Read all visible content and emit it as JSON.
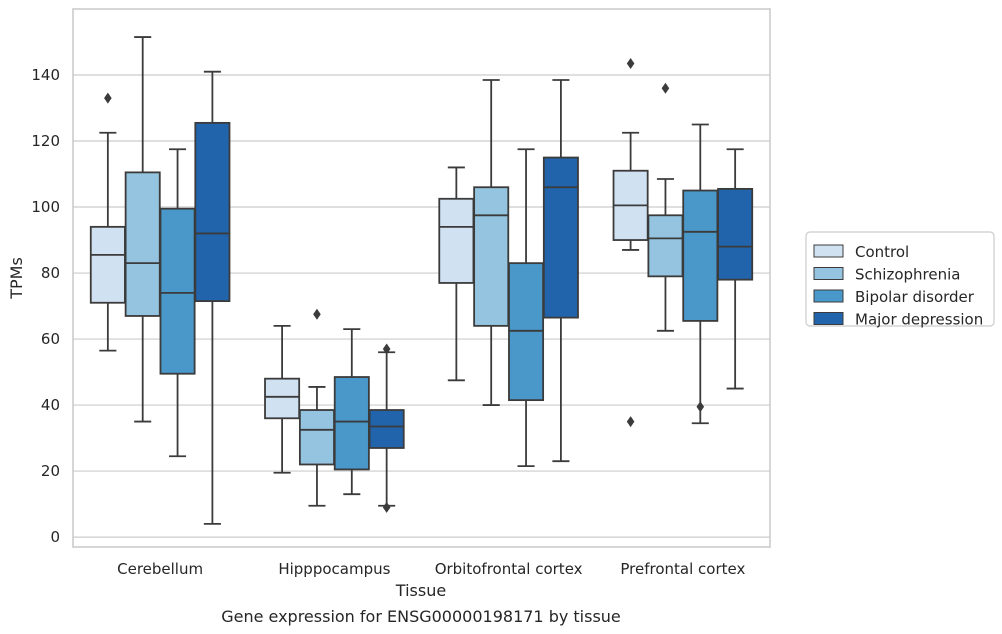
{
  "chart_data": {
    "type": "box",
    "title": "",
    "caption": "Gene expression for ENSG00000198171 by tissue",
    "xlabel": "Tissue",
    "ylabel": "TPMs",
    "ylim": [
      -3,
      160
    ],
    "yticks": [
      0,
      20,
      40,
      60,
      80,
      100,
      120,
      140
    ],
    "grid": true,
    "legend_position": "right",
    "categories": [
      "Cerebellum",
      "Hipppocampus",
      "Orbitofrontal cortex",
      "Prefrontal cortex"
    ],
    "series": [
      {
        "name": "Control",
        "color": "#d0e1f2",
        "boxes": [
          {
            "whislo": 56.5,
            "q1": 71,
            "med": 85.5,
            "q3": 94,
            "whishi": 122.5,
            "fliers": [
              133
            ]
          },
          {
            "whislo": 19.5,
            "q1": 36,
            "med": 42.5,
            "q3": 48,
            "whishi": 64,
            "fliers": []
          },
          {
            "whislo": 47.5,
            "q1": 77,
            "med": 94,
            "q3": 102.5,
            "whishi": 112,
            "fliers": []
          },
          {
            "whislo": 87,
            "q1": 90,
            "med": 100.5,
            "q3": 111,
            "whishi": 122.5,
            "fliers": [
              143.5,
              35
            ]
          }
        ]
      },
      {
        "name": "Schizophrenia",
        "color": "#94c4df",
        "boxes": [
          {
            "whislo": 35,
            "q1": 67,
            "med": 83,
            "q3": 110.5,
            "whishi": 151.5,
            "fliers": []
          },
          {
            "whislo": 9.5,
            "q1": 22,
            "med": 32.5,
            "q3": 38.5,
            "whishi": 45.5,
            "fliers": [
              67.5
            ]
          },
          {
            "whislo": 40,
            "q1": 64,
            "med": 97.5,
            "q3": 106,
            "whishi": 138.5,
            "fliers": []
          },
          {
            "whislo": 62.5,
            "q1": 79,
            "med": 90.5,
            "q3": 97.5,
            "whishi": 108.5,
            "fliers": [
              136
            ]
          }
        ]
      },
      {
        "name": "Bipolar disorder",
        "color": "#4a98c9",
        "boxes": [
          {
            "whislo": 24.5,
            "q1": 49.5,
            "med": 74,
            "q3": 99.5,
            "whishi": 117.5,
            "fliers": []
          },
          {
            "whislo": 13,
            "q1": 20.5,
            "med": 35,
            "q3": 48.5,
            "whishi": 63,
            "fliers": []
          },
          {
            "whislo": 21.5,
            "q1": 41.5,
            "med": 62.5,
            "q3": 83,
            "whishi": 117.5,
            "fliers": []
          },
          {
            "whislo": 34.5,
            "q1": 65.5,
            "med": 92.5,
            "q3": 105,
            "whishi": 125,
            "fliers": [
              39.5
            ]
          }
        ]
      },
      {
        "name": "Major depression",
        "color": "#2264ab",
        "boxes": [
          {
            "whislo": 4,
            "q1": 71.5,
            "med": 92,
            "q3": 125.5,
            "whishi": 141,
            "fliers": []
          },
          {
            "whislo": 9.5,
            "q1": 27,
            "med": 33.5,
            "q3": 38.5,
            "whishi": 56,
            "fliers": [
              57,
              9
            ]
          },
          {
            "whislo": 23,
            "q1": 66.5,
            "med": 106,
            "q3": 115,
            "whishi": 138.5,
            "fliers": []
          },
          {
            "whislo": 45,
            "q1": 78,
            "med": 88,
            "q3": 105.5,
            "whishi": 117.5,
            "fliers": []
          }
        ]
      }
    ]
  }
}
